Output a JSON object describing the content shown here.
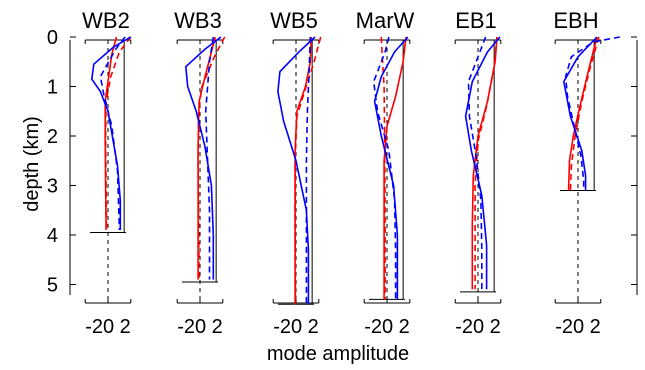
{
  "chart_data": {
    "type": "line",
    "title": "",
    "xlabel": "mode amplitude",
    "ylabel": "depth (km)",
    "ylim": [
      0,
      5.5
    ],
    "yticks": [
      0,
      1,
      2,
      3,
      4,
      5
    ],
    "yaxis_inverted": true,
    "xlim": [
      -2.6,
      2.6
    ],
    "xticks_label": "-20 2",
    "grid": false,
    "legend": "none",
    "colors": {
      "mode1": "#ff0000",
      "mode2": "#0000ff",
      "axes": "#000000"
    },
    "line_styles": {
      "model": "solid",
      "observed": "dashed"
    },
    "panels": [
      {
        "name": "WB2",
        "bottom_depth": 3.95,
        "series": [
          {
            "mode": 1,
            "style": "solid",
            "points": [
              [
                0.9,
                0.0
              ],
              [
                0.4,
                0.35
              ],
              [
                0.0,
                0.9
              ],
              [
                -0.3,
                1.3
              ],
              [
                -0.3,
                2.0
              ],
              [
                -0.25,
                3.0
              ],
              [
                -0.2,
                3.9
              ]
            ]
          },
          {
            "mode": 1,
            "style": "dashed",
            "points": [
              [
                2.4,
                0.0
              ],
              [
                1.2,
                0.3
              ],
              [
                0.3,
                0.8
              ],
              [
                -0.2,
                1.3
              ],
              [
                -0.25,
                2.0
              ],
              [
                -0.2,
                3.0
              ],
              [
                -0.15,
                3.9
              ]
            ]
          },
          {
            "mode": 2,
            "style": "solid",
            "points": [
              [
                2.4,
                0.0
              ],
              [
                0.6,
                0.2
              ],
              [
                -1.5,
                0.55
              ],
              [
                -1.7,
                0.85
              ],
              [
                -0.8,
                1.1
              ],
              [
                0.0,
                1.5
              ],
              [
                1.0,
                2.6
              ],
              [
                1.3,
                3.3
              ],
              [
                1.3,
                3.9
              ]
            ]
          },
          {
            "mode": 2,
            "style": "dashed",
            "points": [
              [
                1.8,
                0.0
              ],
              [
                0.8,
                0.25
              ],
              [
                -0.8,
                0.8
              ],
              [
                -0.4,
                1.2
              ],
              [
                0.4,
                1.8
              ],
              [
                1.0,
                2.7
              ],
              [
                1.2,
                3.9
              ]
            ]
          }
        ]
      },
      {
        "name": "WB3",
        "bottom_depth": 4.95,
        "series": [
          {
            "mode": 1,
            "style": "solid",
            "points": [
              [
                1.6,
                0.0
              ],
              [
                1.2,
                0.3
              ],
              [
                0.4,
                0.9
              ],
              [
                -0.1,
                1.3
              ],
              [
                -0.2,
                2.2
              ],
              [
                -0.2,
                3.5
              ],
              [
                -0.2,
                4.9
              ]
            ]
          },
          {
            "mode": 1,
            "style": "dashed",
            "points": [
              [
                2.6,
                0.0
              ],
              [
                1.5,
                0.4
              ],
              [
                0.2,
                1.0
              ],
              [
                -0.15,
                1.5
              ],
              [
                -0.2,
                2.5
              ],
              [
                -0.15,
                3.8
              ],
              [
                -0.1,
                4.9
              ]
            ]
          },
          {
            "mode": 2,
            "style": "solid",
            "points": [
              [
                2.2,
                0.0
              ],
              [
                0.5,
                0.25
              ],
              [
                -1.5,
                0.6
              ],
              [
                -1.3,
                1.0
              ],
              [
                -0.4,
                1.5
              ],
              [
                0.5,
                2.2
              ],
              [
                1.2,
                3.0
              ],
              [
                1.4,
                4.0
              ],
              [
                1.4,
                4.9
              ]
            ]
          },
          {
            "mode": 2,
            "style": "dashed",
            "points": [
              [
                1.4,
                0.0
              ],
              [
                1.0,
                0.5
              ],
              [
                0.6,
                1.5
              ],
              [
                0.8,
                2.5
              ],
              [
                1.0,
                3.5
              ],
              [
                1.0,
                4.9
              ]
            ]
          }
        ]
      },
      {
        "name": "WB5",
        "bottom_depth": 5.4,
        "series": [
          {
            "mode": 1,
            "style": "solid",
            "points": [
              [
                1.6,
                0.0
              ],
              [
                1.5,
                0.5
              ],
              [
                1.0,
                1.0
              ],
              [
                0.1,
                1.5
              ],
              [
                -0.1,
                2.3
              ],
              [
                -0.1,
                3.5
              ],
              [
                -0.1,
                5.4
              ]
            ]
          },
          {
            "mode": 1,
            "style": "dashed",
            "points": [
              [
                2.6,
                0.0
              ],
              [
                1.9,
                0.5
              ],
              [
                0.9,
                1.1
              ],
              [
                0.1,
                1.6
              ],
              [
                -0.1,
                2.5
              ],
              [
                -0.1,
                3.8
              ],
              [
                -0.05,
                5.4
              ]
            ]
          },
          {
            "mode": 2,
            "style": "solid",
            "points": [
              [
                2.0,
                0.0
              ],
              [
                0.3,
                0.3
              ],
              [
                -1.7,
                0.7
              ],
              [
                -1.9,
                1.1
              ],
              [
                -1.3,
                1.7
              ],
              [
                0.0,
                2.5
              ],
              [
                1.1,
                3.5
              ],
              [
                1.3,
                4.3
              ],
              [
                1.3,
                5.4
              ]
            ]
          },
          {
            "mode": 2,
            "style": "dashed",
            "points": [
              [
                1.5,
                0.0
              ],
              [
                1.4,
                0.6
              ],
              [
                1.2,
                1.5
              ],
              [
                1.1,
                2.5
              ],
              [
                1.1,
                3.5
              ],
              [
                1.1,
                5.4
              ]
            ]
          }
        ]
      },
      {
        "name": "MarW",
        "bottom_depth": 5.3,
        "series": [
          {
            "mode": 1,
            "style": "solid",
            "points": [
              [
                2.0,
                0.0
              ],
              [
                1.7,
                0.5
              ],
              [
                0.9,
                1.2
              ],
              [
                0.0,
                1.8
              ],
              [
                -0.3,
                2.5
              ],
              [
                -0.3,
                3.5
              ],
              [
                -0.3,
                5.3
              ]
            ]
          },
          {
            "mode": 1,
            "style": "dashed",
            "points": [
              [
                -0.6,
                0.0
              ],
              [
                -0.5,
                0.4
              ],
              [
                -0.3,
                1.0
              ],
              [
                -0.25,
                2.0
              ],
              [
                -0.2,
                3.5
              ],
              [
                -0.2,
                5.3
              ]
            ]
          },
          {
            "mode": 2,
            "style": "solid",
            "points": [
              [
                2.2,
                0.0
              ],
              [
                0.8,
                0.3
              ],
              [
                -0.6,
                0.8
              ],
              [
                -1.3,
                1.3
              ],
              [
                -0.6,
                2.0
              ],
              [
                0.7,
                3.0
              ],
              [
                1.1,
                4.0
              ],
              [
                1.1,
                5.3
              ]
            ]
          },
          {
            "mode": 2,
            "style": "dashed",
            "points": [
              [
                0.2,
                0.0
              ],
              [
                -0.2,
                0.3
              ],
              [
                -1.4,
                0.9
              ],
              [
                -1.0,
                1.5
              ],
              [
                0.2,
                2.3
              ],
              [
                0.8,
                3.3
              ],
              [
                0.9,
                4.3
              ],
              [
                0.9,
                5.3
              ]
            ]
          }
        ]
      },
      {
        "name": "EB1",
        "bottom_depth": 5.15,
        "series": [
          {
            "mode": 1,
            "style": "solid",
            "points": [
              [
                2.0,
                0.0
              ],
              [
                1.8,
                0.5
              ],
              [
                1.0,
                1.3
              ],
              [
                0.0,
                2.0
              ],
              [
                -0.5,
                2.8
              ],
              [
                -0.6,
                3.8
              ],
              [
                -0.6,
                5.1
              ]
            ]
          },
          {
            "mode": 1,
            "style": "dashed",
            "points": [
              [
                2.0,
                0.0
              ],
              [
                1.7,
                0.6
              ],
              [
                0.9,
                1.4
              ],
              [
                0.0,
                2.1
              ],
              [
                -0.3,
                3.0
              ],
              [
                -0.3,
                4.0
              ],
              [
                -0.3,
                5.1
              ]
            ]
          },
          {
            "mode": 2,
            "style": "solid",
            "points": [
              [
                2.3,
                0.0
              ],
              [
                1.0,
                0.3
              ],
              [
                -0.6,
                0.9
              ],
              [
                -1.3,
                1.6
              ],
              [
                -0.7,
                2.3
              ],
              [
                0.4,
                3.2
              ],
              [
                0.9,
                4.2
              ],
              [
                0.9,
                5.1
              ]
            ]
          },
          {
            "mode": 2,
            "style": "dashed",
            "points": [
              [
                0.8,
                0.0
              ],
              [
                0.2,
                0.3
              ],
              [
                -1.0,
                0.9
              ],
              [
                -0.9,
                1.6
              ],
              [
                -0.2,
                2.4
              ],
              [
                0.3,
                3.3
              ],
              [
                0.4,
                4.3
              ],
              [
                0.4,
                5.1
              ]
            ]
          }
        ]
      },
      {
        "name": "EBH",
        "bottom_depth": 3.1,
        "series": [
          {
            "mode": 1,
            "style": "solid",
            "points": [
              [
                2.0,
                0.0
              ],
              [
                1.2,
                0.6
              ],
              [
                0.2,
                1.4
              ],
              [
                -0.5,
                2.0
              ],
              [
                -0.9,
                2.5
              ],
              [
                -1.0,
                3.1
              ]
            ]
          },
          {
            "mode": 1,
            "style": "dashed",
            "points": [
              [
                2.2,
                0.0
              ],
              [
                1.3,
                0.6
              ],
              [
                0.4,
                1.3
              ],
              [
                -0.3,
                2.0
              ],
              [
                -0.7,
                2.6
              ],
              [
                -0.8,
                3.1
              ]
            ]
          },
          {
            "mode": 2,
            "style": "solid",
            "points": [
              [
                2.0,
                0.0
              ],
              [
                0.0,
                0.4
              ],
              [
                -1.5,
                0.9
              ],
              [
                -0.8,
                1.6
              ],
              [
                0.4,
                2.3
              ],
              [
                0.8,
                2.8
              ],
              [
                0.8,
                3.1
              ]
            ]
          },
          {
            "mode": 2,
            "style": "dashed",
            "points": [
              [
                4.4,
                0.0
              ],
              [
                1.6,
                0.1
              ],
              [
                -0.7,
                0.4
              ],
              [
                -1.3,
                0.8
              ],
              [
                -1.1,
                1.2
              ],
              [
                -0.4,
                1.8
              ],
              [
                0.3,
                2.4
              ],
              [
                0.6,
                2.9
              ],
              [
                0.6,
                3.1
              ]
            ]
          }
        ]
      }
    ]
  }
}
